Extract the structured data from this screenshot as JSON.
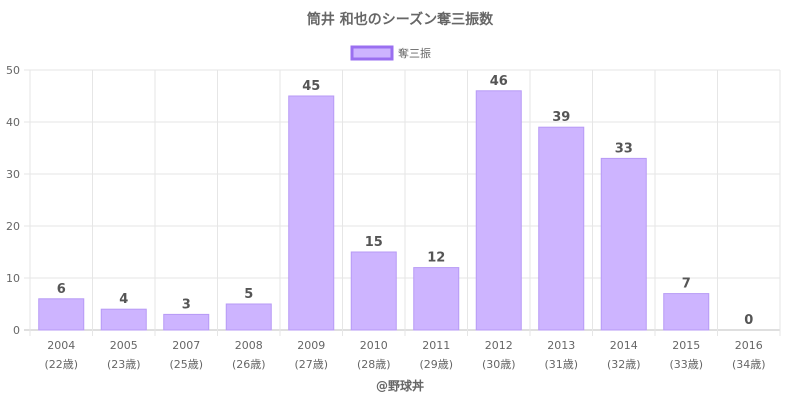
{
  "chart_data": {
    "type": "bar",
    "title": "筒井 和也のシーズン奪三振数",
    "categories": [
      "2004",
      "2005",
      "2007",
      "2008",
      "2009",
      "2010",
      "2011",
      "2012",
      "2013",
      "2014",
      "2015",
      "2016"
    ],
    "sublabels": [
      "(22歳)",
      "(23歳)",
      "(25歳)",
      "(26歳)",
      "(27歳)",
      "(28歳)",
      "(29歳)",
      "(30歳)",
      "(31歳)",
      "(32歳)",
      "(33歳)",
      "(34歳)"
    ],
    "series": [
      {
        "name": "奪三振",
        "values": [
          6,
          4,
          3,
          5,
          45,
          15,
          12,
          46,
          39,
          33,
          7,
          0
        ]
      }
    ],
    "ylim": [
      0,
      50
    ],
    "yticks": [
      0,
      10,
      20,
      30,
      40,
      50
    ],
    "grid": true,
    "legend_position": "top-center",
    "colors": {
      "bar_fill": "#cdb4ff",
      "bar_stroke": "#b79af5",
      "legend_stroke": "#9a6ff0",
      "grid": "#e6e6e6",
      "axis": "#bfbfbf"
    }
  },
  "credit": "@野球丼"
}
